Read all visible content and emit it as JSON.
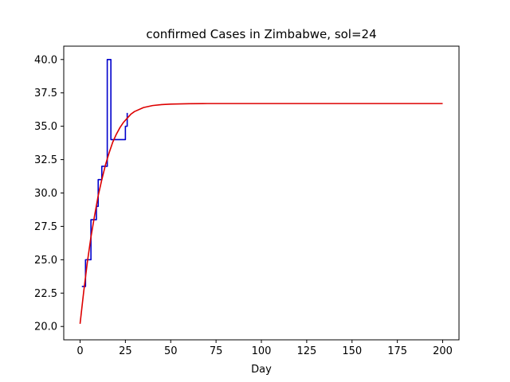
{
  "chart_data": {
    "type": "line",
    "title": "confirmed Cases in Zimbabwe, sol=24",
    "xlabel": "Day",
    "ylabel": "",
    "xlim": [
      -9,
      209
    ],
    "ylim": [
      19.0,
      41.0
    ],
    "xticks": [
      0,
      25,
      50,
      75,
      100,
      125,
      150,
      175,
      200
    ],
    "yticks": [
      20.0,
      22.5,
      25.0,
      27.5,
      30.0,
      32.5,
      35.0,
      37.5,
      40.0
    ],
    "grid": false,
    "legend": "none",
    "series": [
      {
        "color": "#0000cc",
        "style": "steps",
        "x": [
          1,
          2,
          3,
          4,
          5,
          6,
          7,
          8,
          9,
          10,
          11,
          12,
          13,
          14,
          15,
          16,
          17,
          18,
          19,
          20,
          21,
          22,
          23,
          24,
          25,
          26
        ],
        "y": [
          23,
          23,
          25,
          25,
          25,
          28,
          28,
          28,
          29,
          31,
          31,
          32,
          32,
          32,
          40,
          40,
          34,
          34,
          34,
          34,
          34,
          34,
          34,
          34,
          35,
          36
        ]
      },
      {
        "color": "#dd0000",
        "style": "line",
        "x": [
          0,
          2,
          4,
          6,
          8,
          10,
          12,
          14,
          16,
          18,
          20,
          22,
          24,
          26,
          28,
          30,
          35,
          40,
          45,
          50,
          60,
          70,
          80,
          100,
          125,
          150,
          175,
          200
        ],
        "y": [
          20.2,
          22.6,
          24.8,
          26.7,
          28.3,
          29.8,
          31.0,
          32.1,
          33.0,
          33.8,
          34.4,
          34.9,
          35.3,
          35.6,
          35.9,
          36.1,
          36.4,
          36.55,
          36.62,
          36.66,
          36.69,
          36.7,
          36.7,
          36.7,
          36.7,
          36.7,
          36.7,
          36.7
        ]
      }
    ]
  }
}
